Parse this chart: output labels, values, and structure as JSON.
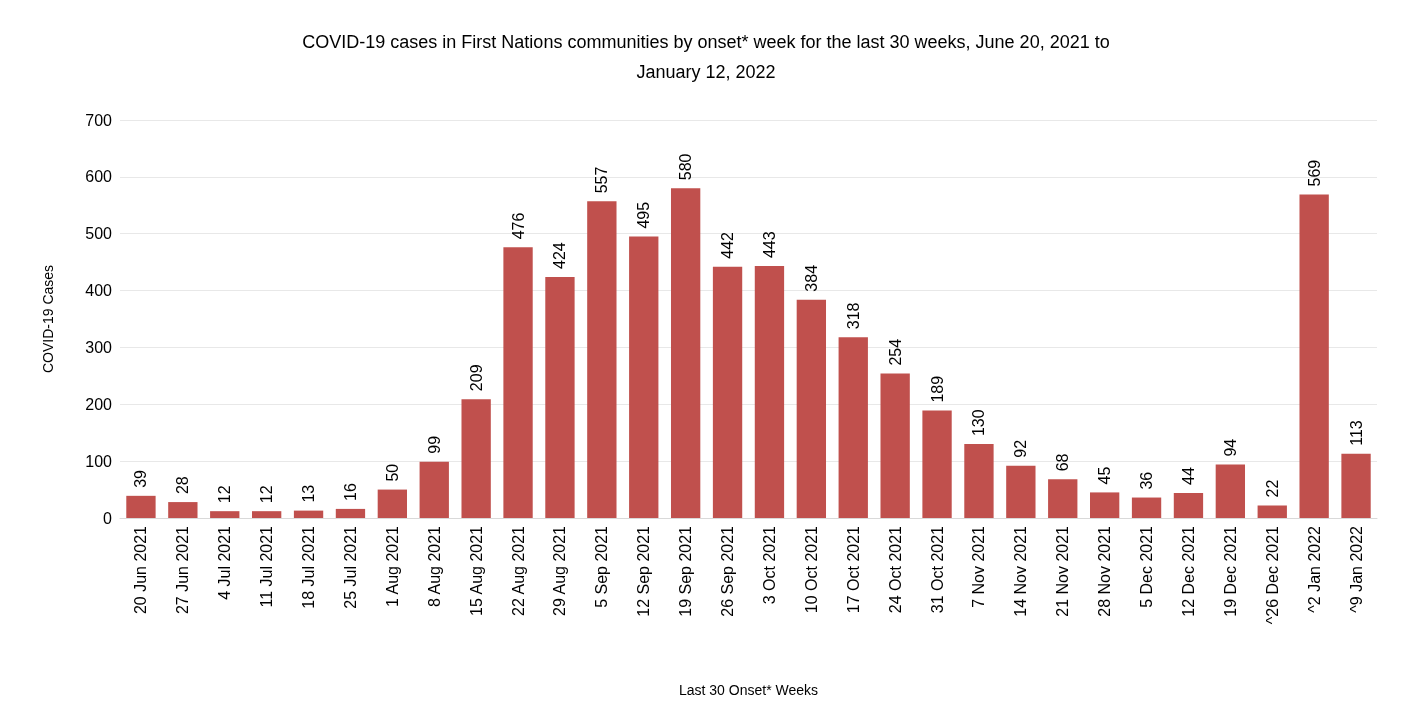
{
  "chart_data": {
    "type": "bar",
    "title": "COVID-19 cases in First Nations communities by onset* week for the last 30 weeks, June 20, 2021 to\nJanuary 12, 2022",
    "xlabel": "Last 30 Onset* Weeks",
    "ylabel": "COVID-19 Cases",
    "categories": [
      "20 Jun 2021",
      "27 Jun 2021",
      "4 Jul 2021",
      "11 Jul 2021",
      "18 Jul 2021",
      "25 Jul 2021",
      "1 Aug 2021",
      "8 Aug 2021",
      "15 Aug 2021",
      "22 Aug 2021",
      "29 Aug 2021",
      "5 Sep 2021",
      "12 Sep 2021",
      "19 Sep 2021",
      "26 Sep 2021",
      "3 Oct 2021",
      "10 Oct 2021",
      "17 Oct 2021",
      "24 Oct 2021",
      "31 Oct 2021",
      "7 Nov 2021",
      "14 Nov 2021",
      "21 Nov 2021",
      "28 Nov 2021",
      "5 Dec 2021",
      "12 Dec 2021",
      "19 Dec 2021",
      "^26 Dec 2021",
      "^2 Jan 2022",
      "^9 Jan 2022"
    ],
    "values": [
      39,
      28,
      12,
      12,
      13,
      16,
      50,
      99,
      209,
      476,
      424,
      557,
      495,
      580,
      442,
      443,
      384,
      318,
      254,
      189,
      130,
      92,
      68,
      45,
      36,
      44,
      94,
      22,
      569,
      113
    ],
    "color": "#c0504d",
    "ylim": [
      0,
      700
    ],
    "yticks": [
      0,
      100,
      200,
      300,
      400,
      500,
      600,
      700
    ],
    "grid": "y",
    "data_labels": true
  }
}
